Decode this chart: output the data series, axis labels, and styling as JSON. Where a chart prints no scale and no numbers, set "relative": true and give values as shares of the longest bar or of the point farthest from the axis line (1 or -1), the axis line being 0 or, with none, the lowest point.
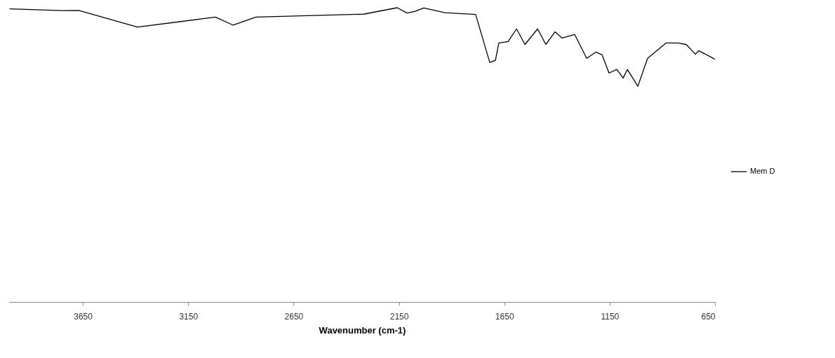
{
  "chart_data": {
    "type": "line",
    "xlabel": "Wavenumber (cm-1)",
    "relative": true,
    "xlim": [
      4000,
      650
    ],
    "xticks": [
      3650,
      3150,
      2650,
      2150,
      1650,
      1150,
      650
    ],
    "grid": false,
    "legend": "right",
    "series": [
      {
        "name": "Mem D",
        "color": "#000000",
        "x": [
          3998,
          3747,
          3670,
          3391,
          3021,
          2938,
          2828,
          2318,
          2158,
          2112,
          2075,
          2032,
          1932,
          1786,
          1719,
          1692,
          1676,
          1632,
          1592,
          1552,
          1492,
          1453,
          1409,
          1376,
          1316,
          1259,
          1216,
          1186,
          1153,
          1116,
          1086,
          1066,
          1016,
          970,
          883,
          826,
          787,
          743,
          727,
          650
        ],
        "values": [
          0.996,
          0.99,
          0.991,
          0.934,
          0.968,
          0.941,
          0.968,
          0.978,
          1,
          0.982,
          0.987,
          0.999,
          0.983,
          0.977,
          0.814,
          0.821,
          0.88,
          0.885,
          0.928,
          0.875,
          0.928,
          0.875,
          0.918,
          0.897,
          0.909,
          0.828,
          0.849,
          0.84,
          0.778,
          0.79,
          0.761,
          0.79,
          0.733,
          0.828,
          0.88,
          0.88,
          0.875,
          0.842,
          0.854,
          0.825
        ]
      }
    ]
  }
}
